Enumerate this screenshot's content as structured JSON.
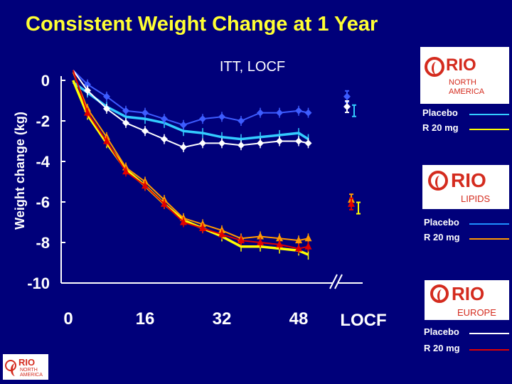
{
  "title": "Consistent Weight Change at 1 Year",
  "colors": {
    "background": "#00007a",
    "title": "#ffff33",
    "na_placebo": "#33ccff",
    "na_r20": "#ffff00",
    "lipids_placebo": "#1e90ff",
    "lipids_r20": "#ff9900",
    "europe_placebo": "#ffffff",
    "europe_r20": "#e00000",
    "extra_blue": "#3d5cff"
  },
  "logos": [
    {
      "word": "RIO",
      "sub1": "NORTH",
      "sub2": "AMERICA"
    },
    {
      "word": "RIO",
      "sub1": "LIPIDS",
      "sub2": ""
    },
    {
      "word": "RIO",
      "sub1": "EUROPE",
      "sub2": ""
    },
    {
      "word": "RIO",
      "sub1": "NORTH",
      "sub2": "AMERICA"
    }
  ],
  "legends": [
    {
      "placebo": "Placebo",
      "r20": "R 20 mg"
    },
    {
      "placebo": "Placebo",
      "r20": "R 20 mg"
    },
    {
      "placebo": "Placebo",
      "r20": "R 20 mg"
    }
  ],
  "chart_data": {
    "type": "line",
    "subtitle": "ITT, LOCF",
    "ylabel": "Weight change (kg)",
    "xlabel": "",
    "ylim": [
      -10,
      0
    ],
    "yticks": [
      0,
      -2,
      -4,
      -6,
      -8,
      -10
    ],
    "xticks": [
      "0",
      "16",
      "32",
      "48"
    ],
    "xtick_values": [
      0,
      16,
      32,
      48
    ],
    "xlim": [
      0,
      52
    ],
    "locf_label": "LOCF",
    "grid": false,
    "x": [
      1,
      4,
      8,
      12,
      16,
      20,
      24,
      28,
      32,
      36,
      40,
      44,
      48,
      50
    ],
    "series": [
      {
        "name": "RIO-North America Placebo",
        "color": "#33ccff",
        "marker": "none",
        "values": [
          -0.1,
          -0.6,
          -1.3,
          -1.8,
          -1.9,
          -2.1,
          -2.5,
          -2.6,
          -2.8,
          -2.9,
          -2.8,
          -2.7,
          -2.6,
          -2.9
        ],
        "locf": -1.5
      },
      {
        "name": "RIO-North America R 20 mg",
        "color": "#ffff00",
        "marker": "none",
        "values": [
          0.0,
          -1.7,
          -3.1,
          -4.4,
          -5.2,
          -6.1,
          -6.9,
          -7.3,
          -7.7,
          -8.2,
          -8.2,
          -8.3,
          -8.4,
          -8.6
        ],
        "locf": -6.3
      },
      {
        "name": "RIO-Lipids Placebo",
        "color": "#3d5cff",
        "marker": "diamond",
        "values": [
          0.5,
          -0.2,
          -0.8,
          -1.5,
          -1.6,
          -1.9,
          -2.2,
          -1.9,
          -1.8,
          -2.0,
          -1.6,
          -1.6,
          -1.5,
          -1.6
        ],
        "locf": -0.8
      },
      {
        "name": "RIO-Lipids R 20 mg",
        "color": "#ff9900",
        "marker": "triangle",
        "values": [
          0.4,
          -1.4,
          -2.8,
          -4.3,
          -5.0,
          -5.9,
          -6.8,
          -7.1,
          -7.4,
          -7.8,
          -7.7,
          -7.8,
          -7.9,
          -7.8
        ],
        "locf": -5.9
      },
      {
        "name": "RIO-Europe Placebo",
        "color": "#ffffff",
        "marker": "diamond",
        "values": [
          0.5,
          -0.5,
          -1.4,
          -2.1,
          -2.5,
          -2.9,
          -3.3,
          -3.1,
          -3.1,
          -3.2,
          -3.1,
          -3.0,
          -3.0,
          -3.1
        ],
        "locf": -1.3
      },
      {
        "name": "RIO-Europe R 20 mg",
        "color": "#e00000",
        "marker": "triangle",
        "values": [
          0.5,
          -1.6,
          -3.0,
          -4.5,
          -5.2,
          -6.1,
          -7.0,
          -7.3,
          -7.6,
          -7.9,
          -8.0,
          -8.1,
          -8.3,
          -8.2
        ],
        "locf": -6.1
      }
    ]
  }
}
